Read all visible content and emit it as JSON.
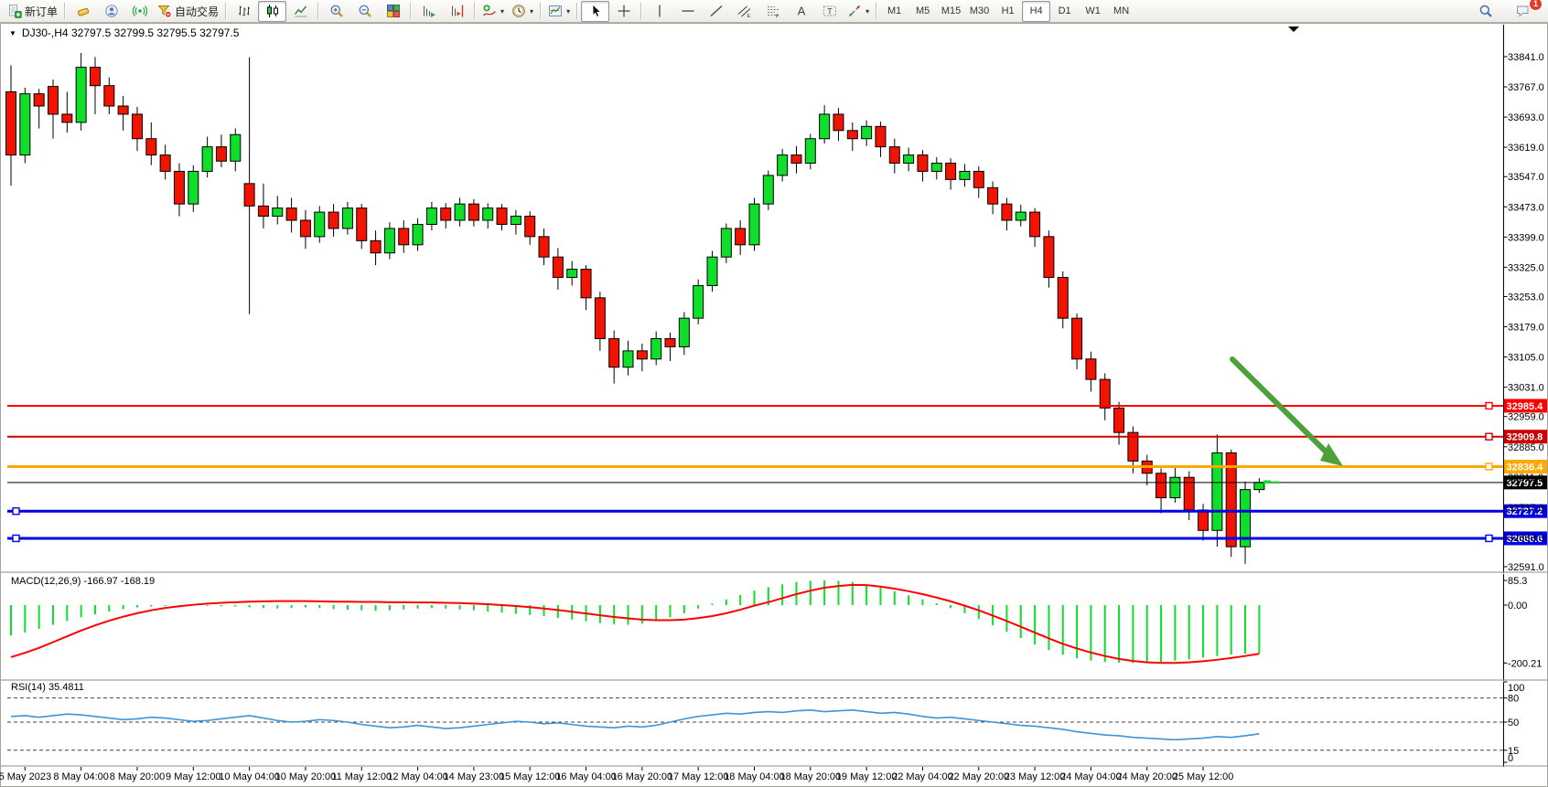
{
  "toolbar": {
    "items": [
      {
        "name": "new-order",
        "label": "新订单"
      },
      {
        "name": "sep"
      },
      {
        "name": "gold"
      },
      {
        "name": "community"
      },
      {
        "name": "signals"
      },
      {
        "name": "auto-trading",
        "label": "自动交易"
      },
      {
        "name": "sep"
      },
      {
        "name": "bar-chart"
      },
      {
        "name": "candlestick-chart",
        "active": true
      },
      {
        "name": "line-chart"
      },
      {
        "name": "sep"
      },
      {
        "name": "zoom-in"
      },
      {
        "name": "zoom-out"
      },
      {
        "name": "tile-windows"
      },
      {
        "name": "sep"
      },
      {
        "name": "auto-scroll"
      },
      {
        "name": "chart-shift"
      },
      {
        "name": "sep"
      },
      {
        "name": "indicators",
        "caret": true
      },
      {
        "name": "periods",
        "caret": true
      },
      {
        "name": "sep"
      },
      {
        "name": "templates",
        "caret": true
      },
      {
        "name": "sep"
      },
      {
        "name": "cursor",
        "active": true
      },
      {
        "name": "crosshair"
      },
      {
        "name": "sep"
      },
      {
        "name": "vertical-line"
      },
      {
        "name": "horizontal-line"
      },
      {
        "name": "trend-line"
      },
      {
        "name": "equidistant-channel"
      },
      {
        "name": "fibonacci"
      },
      {
        "name": "text"
      },
      {
        "name": "text-label"
      },
      {
        "name": "arrow-shapes",
        "caret": true
      },
      {
        "name": "sep"
      }
    ],
    "timeframes": [
      "M1",
      "M5",
      "M15",
      "M30",
      "H1",
      "H4",
      "D1",
      "W1",
      "MN"
    ],
    "active_timeframe": "H4",
    "notification_count": "1"
  },
  "header": {
    "collapse_icon": "▼",
    "title": "DJ30-,H4  32797.5 32799.5 32795.5 32797.5"
  },
  "macd": {
    "label": "MACD(12,26,9) -166.97 -168.19"
  },
  "rsi": {
    "label": "RSI(14) 35.4811"
  },
  "chart_data": {
    "type": "candlestick",
    "symbol": "DJ30-",
    "timeframe": "H4",
    "current_bar": {
      "open": 32797.5,
      "high": 32799.5,
      "low": 32795.5,
      "close": 32797.5
    },
    "y_range": [
      32591.0,
      33841.0
    ],
    "price_ticks": [
      "33841.0",
      "33767.0",
      "33693.0",
      "33619.0",
      "33547.0",
      "33473.0",
      "33399.0",
      "33325.0",
      "33253.0",
      "33179.0",
      "33105.0",
      "33031.0",
      "32959.0",
      "32885.0",
      "32811.0",
      "32737.0",
      "32663.0",
      "32591.0"
    ],
    "x_labels": [
      "5 May 2023",
      "8 May 04:00",
      "8 May 20:00",
      "9 May 12:00",
      "10 May 04:00",
      "10 May 20:00",
      "11 May 12:00",
      "12 May 04:00",
      "14 May 23:00",
      "15 May 12:00",
      "16 May 04:00",
      "16 May 20:00",
      "17 May 12:00",
      "18 May 04:00",
      "18 May 20:00",
      "19 May 12:00",
      "22 May 04:00",
      "22 May 20:00",
      "23 May 12:00",
      "24 May 04:00",
      "24 May 20:00",
      "25 May 12:00"
    ],
    "x_label_first_bar": 1,
    "x_label_every": 4,
    "candles": [
      [
        33755,
        33820,
        33525,
        33600
      ],
      [
        33600,
        33765,
        33580,
        33750
      ],
      [
        33750,
        33762,
        33665,
        33720
      ],
      [
        33768,
        33785,
        33640,
        33700
      ],
      [
        33700,
        33755,
        33655,
        33680
      ],
      [
        33680,
        33850,
        33660,
        33815
      ],
      [
        33815,
        33840,
        33700,
        33770
      ],
      [
        33770,
        33790,
        33700,
        33720
      ],
      [
        33720,
        33745,
        33660,
        33700
      ],
      [
        33700,
        33718,
        33610,
        33640
      ],
      [
        33640,
        33680,
        33575,
        33600
      ],
      [
        33600,
        33625,
        33540,
        33560
      ],
      [
        33560,
        33580,
        33450,
        33480
      ],
      [
        33480,
        33575,
        33460,
        33560
      ],
      [
        33560,
        33645,
        33545,
        33620
      ],
      [
        33620,
        33650,
        33570,
        33585
      ],
      [
        33585,
        33665,
        33560,
        33650
      ],
      [
        33530,
        33840,
        33210,
        33475
      ],
      [
        33475,
        33530,
        33420,
        33450
      ],
      [
        33450,
        33500,
        33430,
        33470
      ],
      [
        33470,
        33495,
        33410,
        33440
      ],
      [
        33440,
        33465,
        33370,
        33400
      ],
      [
        33400,
        33475,
        33385,
        33460
      ],
      [
        33460,
        33480,
        33400,
        33420
      ],
      [
        33420,
        33485,
        33405,
        33470
      ],
      [
        33470,
        33480,
        33370,
        33390
      ],
      [
        33390,
        33415,
        33330,
        33360
      ],
      [
        33360,
        33435,
        33345,
        33420
      ],
      [
        33420,
        33440,
        33360,
        33380
      ],
      [
        33380,
        33445,
        33365,
        33430
      ],
      [
        33430,
        33485,
        33415,
        33470
      ],
      [
        33470,
        33482,
        33420,
        33440
      ],
      [
        33440,
        33495,
        33425,
        33480
      ],
      [
        33480,
        33492,
        33425,
        33440
      ],
      [
        33440,
        33482,
        33420,
        33470
      ],
      [
        33470,
        33480,
        33415,
        33430
      ],
      [
        33430,
        33465,
        33405,
        33450
      ],
      [
        33450,
        33462,
        33380,
        33400
      ],
      [
        33400,
        33420,
        33330,
        33350
      ],
      [
        33350,
        33372,
        33270,
        33300
      ],
      [
        33300,
        33340,
        33280,
        33320
      ],
      [
        33320,
        33330,
        33220,
        33250
      ],
      [
        33250,
        33265,
        33120,
        33150
      ],
      [
        33150,
        33170,
        33040,
        33080
      ],
      [
        33080,
        33145,
        33060,
        33120
      ],
      [
        33120,
        33138,
        33070,
        33100
      ],
      [
        33100,
        33168,
        33085,
        33150
      ],
      [
        33150,
        33165,
        33095,
        33130
      ],
      [
        33130,
        33215,
        33110,
        33200
      ],
      [
        33200,
        33295,
        33185,
        33280
      ],
      [
        33280,
        33365,
        33265,
        33350
      ],
      [
        33350,
        33432,
        33335,
        33420
      ],
      [
        33420,
        33440,
        33355,
        33380
      ],
      [
        33380,
        33495,
        33365,
        33480
      ],
      [
        33480,
        33562,
        33465,
        33550
      ],
      [
        33550,
        33615,
        33535,
        33600
      ],
      [
        33600,
        33622,
        33555,
        33580
      ],
      [
        33580,
        33652,
        33565,
        33640
      ],
      [
        33640,
        33722,
        33628,
        33700
      ],
      [
        33700,
        33715,
        33635,
        33660
      ],
      [
        33660,
        33680,
        33610,
        33640
      ],
      [
        33640,
        33685,
        33622,
        33670
      ],
      [
        33670,
        33682,
        33595,
        33620
      ],
      [
        33620,
        33640,
        33555,
        33580
      ],
      [
        33580,
        33618,
        33560,
        33600
      ],
      [
        33600,
        33612,
        33535,
        33560
      ],
      [
        33560,
        33595,
        33540,
        33580
      ],
      [
        33580,
        33592,
        33515,
        33540
      ],
      [
        33540,
        33578,
        33522,
        33560
      ],
      [
        33560,
        33572,
        33495,
        33520
      ],
      [
        33520,
        33535,
        33455,
        33480
      ],
      [
        33480,
        33495,
        33415,
        33440
      ],
      [
        33440,
        33478,
        33425,
        33460
      ],
      [
        33460,
        33470,
        33375,
        33400
      ],
      [
        33400,
        33415,
        33275,
        33300
      ],
      [
        33300,
        33315,
        33175,
        33200
      ],
      [
        33200,
        33212,
        33075,
        33100
      ],
      [
        33100,
        33118,
        33020,
        33050
      ],
      [
        33050,
        33065,
        32950,
        32980
      ],
      [
        32980,
        32995,
        32890,
        32920
      ],
      [
        32920,
        32935,
        32820,
        32850
      ],
      [
        32850,
        32865,
        32790,
        32820
      ],
      [
        32820,
        32832,
        32722,
        32760
      ],
      [
        32760,
        32838,
        32748,
        32810
      ],
      [
        32810,
        32825,
        32705,
        32730
      ],
      [
        32730,
        32745,
        32655,
        32680
      ],
      [
        32680,
        32915,
        32640,
        32870
      ],
      [
        32870,
        32878,
        32615,
        32640
      ],
      [
        32640,
        32800,
        32598,
        32780
      ],
      [
        32780,
        32808,
        32772,
        32797.5
      ]
    ],
    "levels": [
      {
        "price": 32985.4,
        "color": "#FF0000",
        "width": 2,
        "right_marker": true
      },
      {
        "price": 32909.8,
        "color": "#CC0000",
        "width": 2,
        "right_marker": true
      },
      {
        "price": 32836.4,
        "color": "#FFA800",
        "width": 3,
        "right_marker": true
      },
      {
        "price": 32797.5,
        "color": "#000000",
        "width": 1,
        "current": true
      },
      {
        "price": 32727.2,
        "color": "#0000E6",
        "width": 3,
        "left_marker": true
      },
      {
        "price": 32660.6,
        "color": "#0000E6",
        "width": 3,
        "left_marker": true,
        "right_marker": true
      }
    ],
    "colors": {
      "bull": "#0FDE2A",
      "bear": "#F21400",
      "wick": "#000000",
      "macd_hist": "#0FDE2A",
      "macd_signal": "#FF0000",
      "rsi_line": "#3E93D9",
      "arrow": "#4EA03B"
    },
    "macd": {
      "label": "MACD(12,26,9) -166.97 -168.19",
      "ticks": [
        "85.3",
        "0.00",
        "-200.21"
      ],
      "range": [
        -200.21,
        85.3
      ],
      "histogram": [
        -105,
        -95,
        -82,
        -68,
        -55,
        -42,
        -32,
        -22,
        -14,
        -8,
        -5,
        -3,
        -2,
        -2,
        -3,
        -4,
        -5,
        -8,
        -10,
        -12,
        -10,
        -8,
        -10,
        -14,
        -16,
        -18,
        -20,
        -18,
        -15,
        -12,
        -10,
        -12,
        -15,
        -18,
        -22,
        -26,
        -30,
        -34,
        -38,
        -44,
        -50,
        -56,
        -62,
        -66,
        -68,
        -64,
        -55,
        -42,
        -28,
        -12,
        5,
        20,
        35,
        50,
        62,
        72,
        80,
        84,
        85.3,
        84,
        80,
        72,
        61,
        48,
        34,
        20,
        6,
        -10,
        -28,
        -48,
        -70,
        -92,
        -114,
        -136,
        -156,
        -172,
        -184,
        -192,
        -197,
        -199,
        -200.21,
        -199,
        -196,
        -192,
        -187,
        -181,
        -176,
        -171,
        -168,
        -166.97
      ],
      "signal": [
        -180,
        -165,
        -148,
        -128,
        -108,
        -88,
        -70,
        -54,
        -40,
        -28,
        -18,
        -10,
        -4,
        1,
        5,
        8,
        10,
        12,
        13,
        14,
        14,
        14,
        13,
        12,
        12,
        11,
        11,
        10,
        10,
        9,
        9,
        8,
        7,
        5,
        3,
        0,
        -3,
        -7,
        -12,
        -17,
        -23,
        -29,
        -35,
        -41,
        -46,
        -50,
        -52,
        -52,
        -50,
        -45,
        -38,
        -28,
        -16,
        -2,
        10,
        24,
        38,
        50,
        60,
        66,
        70,
        69,
        64,
        57,
        48,
        38,
        26,
        13,
        -2,
        -18,
        -36,
        -55,
        -75,
        -95,
        -115,
        -134,
        -150,
        -164,
        -176,
        -186,
        -193,
        -198,
        -200,
        -200,
        -198,
        -194,
        -189,
        -183,
        -176,
        -168.19
      ]
    },
    "rsi": {
      "label": "RSI(14) 35.4811",
      "ticks": [
        "100",
        "80",
        "50",
        "15",
        "0"
      ],
      "range": [
        0,
        100
      ],
      "dashed_levels": [
        80,
        50,
        15
      ],
      "series": [
        57,
        58,
        56,
        58,
        60,
        59,
        57,
        55,
        53,
        54,
        56,
        55,
        53,
        51,
        52,
        54,
        56,
        58,
        55,
        52,
        50,
        51,
        53,
        52,
        50,
        47,
        45,
        43,
        44,
        46,
        44,
        42,
        43,
        45,
        47,
        49,
        51,
        50,
        48,
        49,
        47,
        45,
        44,
        43,
        45,
        44,
        46,
        50,
        54,
        57,
        59,
        61,
        60,
        62,
        63,
        62,
        64,
        65,
        63,
        64,
        65,
        63,
        61,
        62,
        60,
        57,
        55,
        56,
        54,
        52,
        50,
        48,
        46,
        45,
        43,
        41,
        38,
        36,
        34,
        33,
        31,
        30,
        29,
        28,
        29,
        30,
        32,
        31,
        33,
        35.48
      ]
    },
    "annotations": [
      {
        "type": "arrow",
        "color": "#4EA03B",
        "comment": "down-sloping arrow pointing at the 32836.4 orange support line"
      }
    ]
  }
}
